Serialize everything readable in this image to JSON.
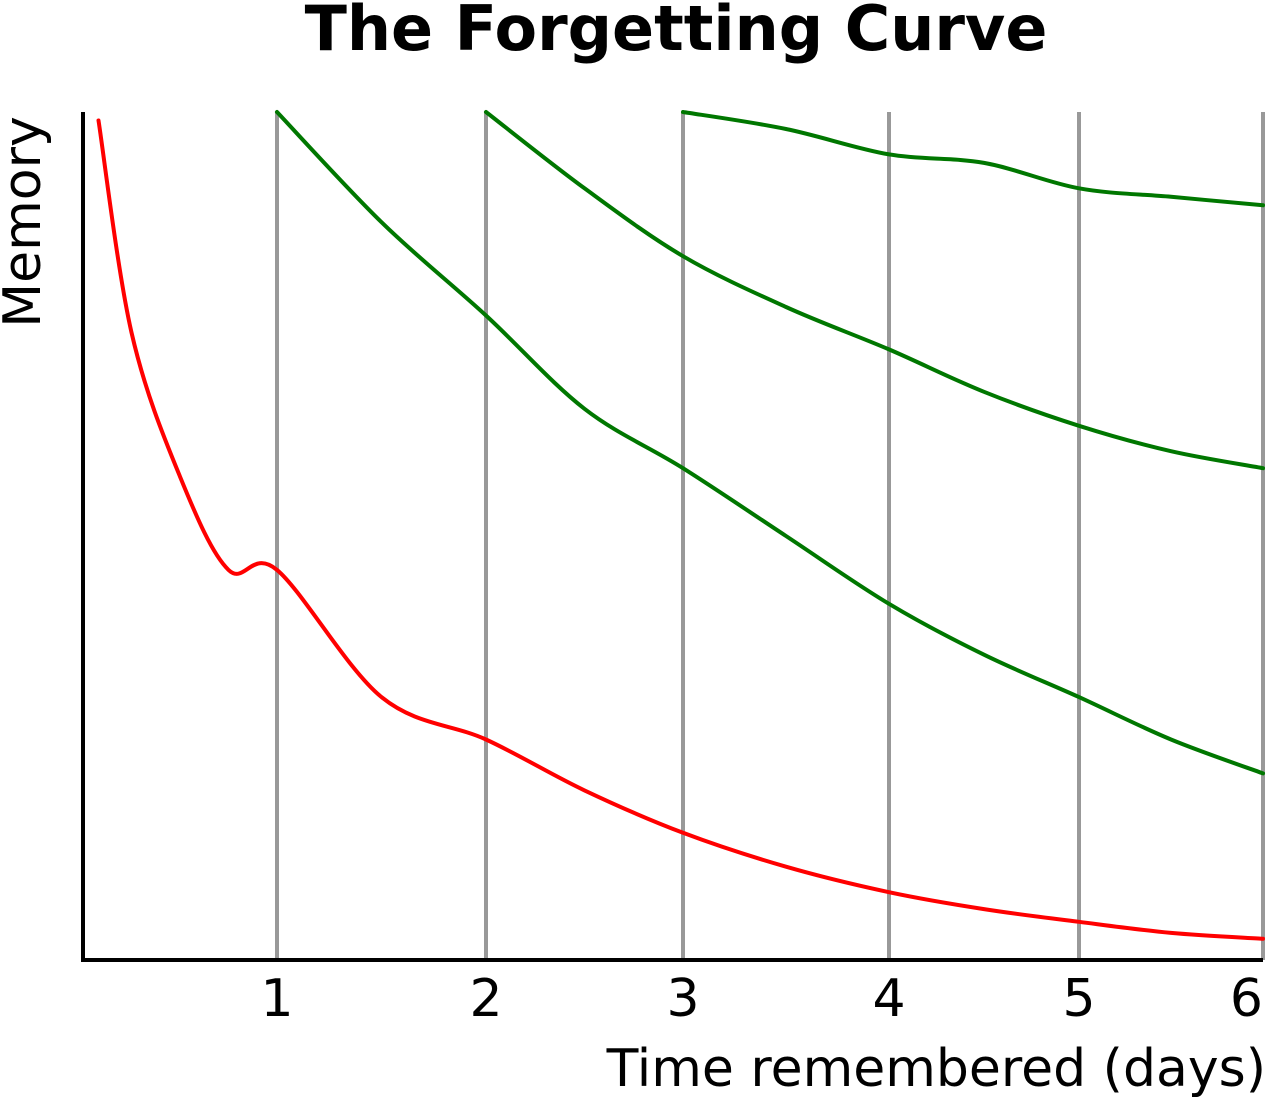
{
  "chart_data": {
    "type": "line",
    "title": "The Forgetting Curve",
    "xlabel": "Time remembered (days)",
    "ylabel": "Memory",
    "xlim": [
      0,
      6
    ],
    "ylim": [
      0,
      100
    ],
    "grid": "vertical",
    "xticks": [
      "1",
      "2",
      "3",
      "4",
      "5",
      "6"
    ],
    "colors": {
      "first_curve": "#ff0000",
      "review_curves": "#007700",
      "grid": "#999999",
      "axes": "#000000"
    },
    "series": [
      {
        "color": "#ff0000",
        "x": [
          0.08,
          0.25,
          0.5,
          0.75,
          1.0,
          1.5,
          2.0,
          2.5,
          3.0,
          3.5,
          4.0,
          4.5,
          5.0,
          5.5,
          6.0
        ],
        "y": [
          99,
          74,
          57,
          46,
          46,
          31,
          26,
          20,
          15,
          11,
          8,
          6,
          4.5,
          3.2,
          2.5
        ]
      },
      {
        "color": "#007700",
        "x": [
          1.0,
          1.5,
          2.0,
          2.5,
          3.0,
          3.5,
          4.0,
          4.5,
          5.0,
          5.5,
          6.0
        ],
        "y": [
          100,
          87,
          76,
          65,
          58,
          50,
          42,
          36,
          31,
          26,
          22
        ]
      },
      {
        "color": "#007700",
        "x": [
          2.0,
          2.5,
          3.0,
          3.5,
          4.0,
          4.5,
          5.0,
          5.5,
          6.0
        ],
        "y": [
          100,
          91,
          83,
          77,
          72,
          67,
          63,
          60,
          58
        ]
      },
      {
        "color": "#007700",
        "x": [
          3.0,
          3.5,
          4.0,
          4.5,
          5.0,
          5.5,
          6.0
        ],
        "y": [
          100,
          98,
          95,
          94,
          91,
          90,
          89
        ]
      }
    ]
  }
}
